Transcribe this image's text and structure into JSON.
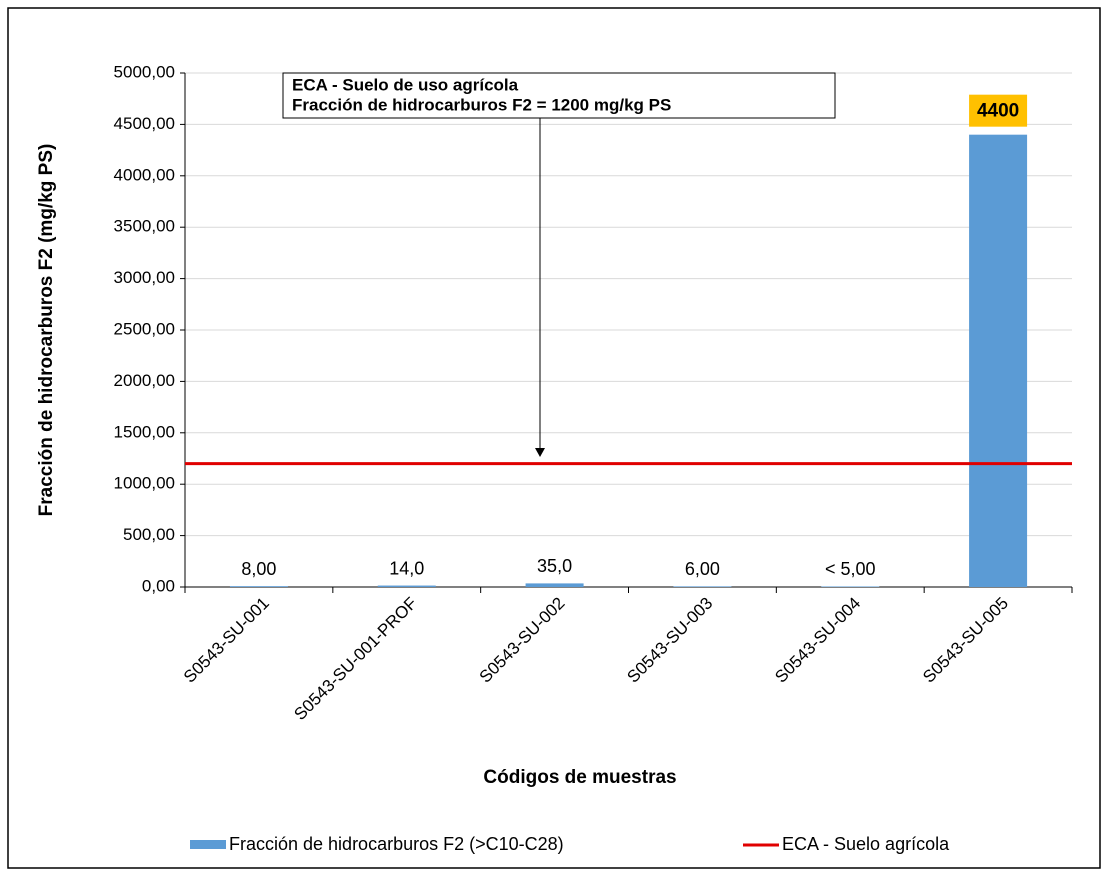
{
  "chart_data": {
    "type": "bar",
    "categories": [
      "S0543-SU-001",
      "S0543-SU-001-PROF",
      "S0543-SU-002",
      "S0543-SU-003",
      "S0543-SU-004",
      "S0543-SU-005"
    ],
    "series": [
      {
        "name": "Fracción de hidrocarburos F2 (>C10-C28)",
        "color": "#5b9bd5",
        "values": [
          8,
          14,
          35,
          6,
          5,
          4400
        ],
        "value_labels": [
          "8,00",
          "14,0",
          "35,0",
          "6,00",
          "< 5,00",
          "4400"
        ]
      }
    ],
    "reference_line": {
      "name": "ECA - Suelo agrícola",
      "value": 1200,
      "color": "#e00000"
    },
    "annotation": [
      "ECA - Suelo de uso agrícola",
      "Fracción de hidrocarburos F2 = 1200 mg/kg PS"
    ],
    "x_label": "Códigos de muestras",
    "y_label": "Fracción de hidrocarburos  F2 (mg/kg PS)",
    "ylim": [
      0,
      5000
    ],
    "yticks": [
      {
        "value": 0,
        "label": "0,00"
      },
      {
        "value": 500,
        "label": "500,00"
      },
      {
        "value": 1000,
        "label": "1000,00"
      },
      {
        "value": 1500,
        "label": "1500,00"
      },
      {
        "value": 2000,
        "label": "2000,00"
      },
      {
        "value": 2500,
        "label": "2500,00"
      },
      {
        "value": 3000,
        "label": "3000,00"
      },
      {
        "value": 3500,
        "label": "3500,00"
      },
      {
        "value": 4000,
        "label": "4000,00"
      },
      {
        "value": 4500,
        "label": "4500,00"
      },
      {
        "value": 5000,
        "label": "5000,00"
      }
    ],
    "grid": true
  }
}
